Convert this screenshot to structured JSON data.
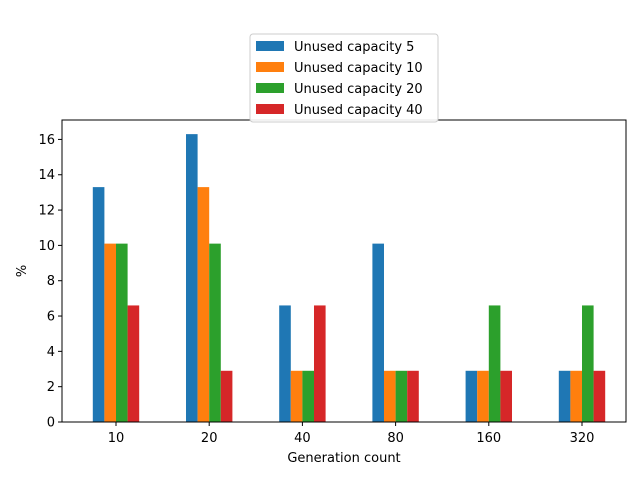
{
  "chart_data": {
    "type": "bar",
    "title": "",
    "xlabel": "Generation count",
    "ylabel": "%",
    "categories": [
      "10",
      "20",
      "40",
      "80",
      "160",
      "320"
    ],
    "series": [
      {
        "name": "Unused capacity 5",
        "color": "#1f77b4",
        "values": [
          13.3,
          16.3,
          6.6,
          10.1,
          2.9,
          2.9
        ]
      },
      {
        "name": "Unused capacity 10",
        "color": "#ff7f0e",
        "values": [
          10.1,
          13.3,
          2.9,
          2.9,
          2.9,
          2.9
        ]
      },
      {
        "name": "Unused capacity 20",
        "color": "#2ca02c",
        "values": [
          10.1,
          10.1,
          2.9,
          2.9,
          6.6,
          6.6
        ]
      },
      {
        "name": "Unused capacity 40",
        "color": "#d62728",
        "values": [
          6.6,
          2.9,
          6.6,
          2.9,
          2.9,
          2.9
        ]
      }
    ],
    "ylim": [
      0,
      17.1
    ],
    "yticks": [
      0,
      2,
      4,
      6,
      8,
      10,
      12,
      14,
      16
    ],
    "grid": false,
    "legend_position": "top-center"
  }
}
